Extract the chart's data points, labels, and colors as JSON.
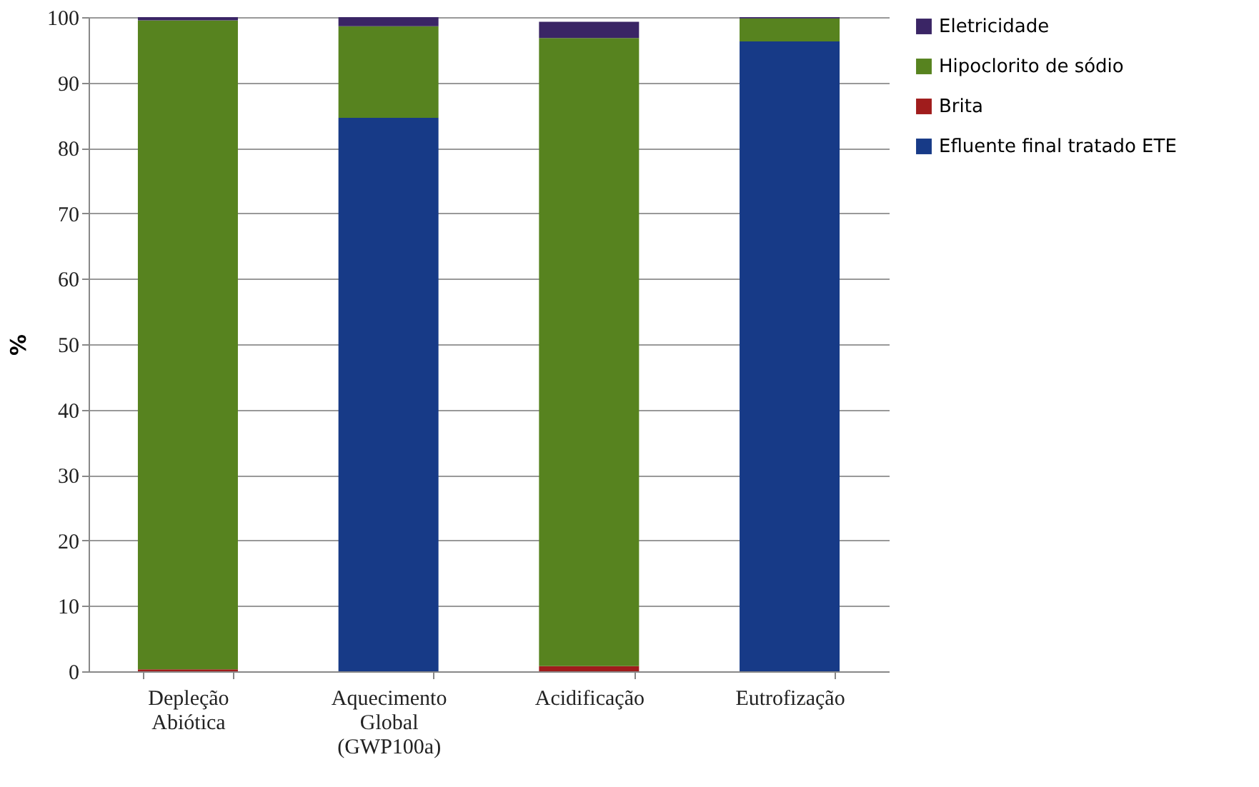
{
  "chart_data": {
    "type": "bar",
    "stacked": true,
    "ylabel": "%",
    "categories": [
      "Depleção\nAbiótica",
      "Aquecimento\nGlobal\n(GWP100a)",
      "Acidificação",
      "Eutrofização"
    ],
    "series": [
      {
        "name": "Efluente final tratado ETE",
        "color": "#173a87",
        "values": [
          0,
          84.6,
          0,
          96.3
        ]
      },
      {
        "name": "Brita",
        "color": "#a01c1c",
        "values": [
          0.3,
          0,
          0.8,
          0
        ]
      },
      {
        "name": "Hipoclorito de sódio",
        "color": "#57831f",
        "values": [
          99.2,
          14.0,
          96.0,
          3.5
        ]
      },
      {
        "name": "Eletricidade",
        "color": "#3a2565",
        "values": [
          0.5,
          1.4,
          2.5,
          0.2
        ]
      }
    ],
    "ylim": [
      0,
      100
    ],
    "yticks": [
      0,
      10,
      20,
      30,
      40,
      50,
      60,
      70,
      80,
      90,
      100
    ],
    "grid": "y",
    "legend": "right"
  }
}
